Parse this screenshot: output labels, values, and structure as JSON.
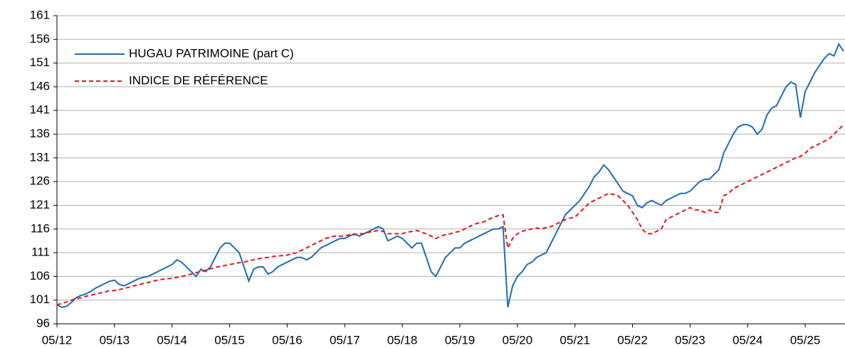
{
  "chart_data": {
    "type": "line",
    "categories": [
      "05/12",
      null,
      null,
      null,
      null,
      null,
      null,
      null,
      null,
      null,
      null,
      null,
      "05/13",
      null,
      null,
      null,
      null,
      null,
      null,
      null,
      null,
      null,
      null,
      null,
      "05/14",
      null,
      null,
      null,
      null,
      null,
      null,
      null,
      null,
      null,
      null,
      null,
      "05/15",
      null,
      null,
      null,
      null,
      null,
      null,
      null,
      null,
      null,
      null,
      null,
      "05/16",
      null,
      null,
      null,
      null,
      null,
      null,
      null,
      null,
      null,
      null,
      null,
      "05/17",
      null,
      null,
      null,
      null,
      null,
      null,
      null,
      null,
      null,
      null,
      null,
      "05/18",
      null,
      null,
      null,
      null,
      null,
      null,
      null,
      null,
      null,
      null,
      null,
      "05/19",
      null,
      null,
      null,
      null,
      null,
      null,
      null,
      null,
      null,
      null,
      null,
      "05/20",
      null,
      null,
      null,
      null,
      null,
      null,
      null,
      null,
      null,
      null,
      null,
      "05/21",
      null,
      null,
      null,
      null,
      null,
      null,
      null,
      null,
      null,
      null,
      null,
      "05/22",
      null,
      null,
      null,
      null,
      null,
      null,
      null,
      null,
      null,
      null,
      null,
      "05/23",
      null,
      null,
      null,
      null,
      null,
      null,
      null,
      null,
      null,
      null,
      null,
      "05/24",
      null,
      null,
      null,
      null,
      null,
      null,
      null,
      null,
      null,
      null,
      null,
      "05/25",
      null,
      null,
      null,
      null,
      null,
      null,
      null,
      null
    ],
    "series": [
      {
        "name": "HUGAU PATRIMOINE (part C)",
        "color": "#1f6db5",
        "line_style": "solid",
        "values": [
          100,
          99.5,
          99.7,
          100.5,
          101.5,
          102,
          102.3,
          102.8,
          103.5,
          104,
          104.5,
          105,
          105.2,
          104.3,
          104,
          104.5,
          105,
          105.5,
          105.8,
          106,
          106.5,
          107,
          107.5,
          108,
          108.5,
          109.5,
          109,
          108,
          107,
          106,
          107.5,
          107,
          108,
          110,
          112,
          113,
          113,
          112,
          111,
          108,
          105,
          107.5,
          108,
          108,
          106.5,
          107,
          108,
          108.5,
          109,
          109.5,
          110,
          110,
          109.5,
          110,
          111,
          112,
          112.5,
          113,
          113.5,
          114,
          114,
          114.5,
          115,
          114.5,
          115,
          115.5,
          116,
          116.5,
          116,
          113.5,
          114,
          114.5,
          114,
          113,
          112,
          113,
          113,
          110,
          107,
          106,
          108,
          110,
          111,
          112,
          112,
          113,
          113.5,
          114,
          114.5,
          115,
          115.5,
          116,
          116,
          116.5,
          99.5,
          104,
          106,
          107,
          108.5,
          109,
          110,
          110.5,
          111,
          113,
          115,
          117,
          119,
          120,
          121,
          122,
          123.5,
          125,
          127,
          128,
          129.5,
          128.5,
          127,
          125.5,
          124,
          123.5,
          123,
          121,
          120.5,
          121.5,
          122,
          121.5,
          121,
          122,
          122.5,
          123,
          123.5,
          123.5,
          124,
          125,
          126,
          126.5,
          126.5,
          127.5,
          128.5,
          132,
          134,
          136,
          137.5,
          138,
          138,
          137.5,
          136,
          137,
          140,
          141.5,
          142,
          144,
          146,
          147,
          146.5,
          139.5,
          145,
          147,
          149,
          150.5,
          152,
          153,
          152.5,
          155,
          153.5
        ]
      },
      {
        "name": "INDICE DE RÉFÉRENCE",
        "color": "#e8141b",
        "line_style": "dashed",
        "values": [
          100,
          100.3,
          100.6,
          101,
          101.3,
          101.5,
          101.8,
          102,
          102.3,
          102.5,
          102.7,
          103,
          103,
          103.2,
          103.5,
          103.7,
          104,
          104.2,
          104.5,
          104.7,
          105,
          105.2,
          105.4,
          105.5,
          105.6,
          105.8,
          106,
          106.2,
          106.5,
          106.8,
          107,
          107.3,
          107.6,
          107.9,
          108.1,
          108.3,
          108.5,
          108.7,
          108.9,
          109,
          109.3,
          109.5,
          109.7,
          109.9,
          110,
          110.2,
          110.3,
          110.4,
          110.5,
          110.8,
          111,
          111.5,
          112,
          112.5,
          113,
          113.5,
          114,
          114.3,
          114.5,
          114.5,
          114.5,
          114.8,
          114.8,
          115,
          115,
          115.3,
          115.5,
          115.7,
          115.5,
          115,
          115,
          115,
          115,
          115.3,
          115.5,
          115.7,
          115.3,
          115,
          114.5,
          114,
          114.5,
          114.8,
          115,
          115.3,
          115.5,
          116,
          116.5,
          117,
          117.3,
          117.5,
          118,
          118.5,
          118.8,
          119,
          112,
          114,
          115,
          115.5,
          115.8,
          116,
          116.2,
          116,
          116.3,
          116.5,
          117,
          117.5,
          118,
          118.3,
          118.5,
          119.5,
          120.5,
          121.5,
          122,
          122.5,
          123,
          123.5,
          123.3,
          123,
          122,
          121,
          119.5,
          118,
          116,
          115,
          115,
          115.5,
          116,
          118,
          118.5,
          119,
          119.5,
          120,
          120.5,
          120,
          120,
          119.5,
          120,
          119.5,
          119.5,
          123,
          123.5,
          124.5,
          125,
          125.5,
          126,
          126.5,
          127,
          127.5,
          128,
          128.5,
          129,
          129.5,
          130,
          130.5,
          131,
          131.3,
          132,
          133,
          133.5,
          134,
          134.5,
          135,
          136,
          137,
          138
        ]
      }
    ],
    "ylim": [
      96,
      161
    ],
    "yticks": [
      96,
      101,
      106,
      111,
      116,
      121,
      126,
      131,
      136,
      141,
      146,
      151,
      156,
      161
    ],
    "grid": true,
    "legend": "upper left"
  }
}
